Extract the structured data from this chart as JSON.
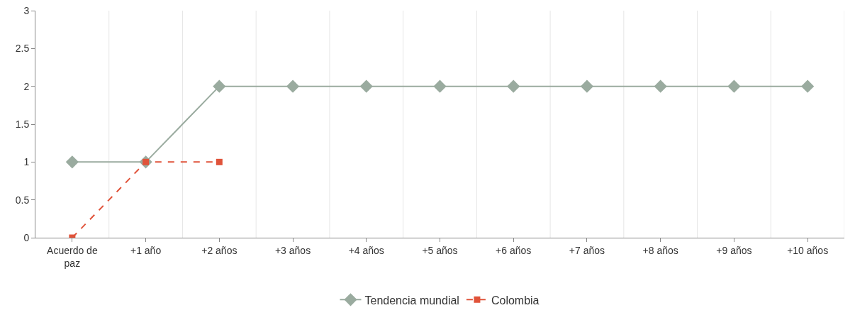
{
  "chart_data": {
    "type": "line",
    "categories": [
      "Acuerdo de paz",
      "+1 año",
      "+2 años",
      "+3 años",
      "+4 años",
      "+5 años",
      "+6 años",
      "+7 años",
      "+8 años",
      "+9 años",
      "+10 años"
    ],
    "series": [
      {
        "name": "Tendencia mundial",
        "color": "#9aab9f",
        "marker": "diamond",
        "line_style": "solid",
        "values": [
          1,
          1,
          2,
          2,
          2,
          2,
          2,
          2,
          2,
          2,
          2
        ]
      },
      {
        "name": "Colombia",
        "color": "#e0533a",
        "marker": "square",
        "line_style": "dashed",
        "values": [
          0,
          1,
          1,
          null,
          null,
          null,
          null,
          null,
          null,
          null,
          null
        ]
      }
    ],
    "ylim": [
      0,
      3
    ],
    "yticks": [
      0,
      0.5,
      1,
      1.5,
      2,
      2.5,
      3
    ],
    "grid": "x",
    "legend": "bottom"
  }
}
